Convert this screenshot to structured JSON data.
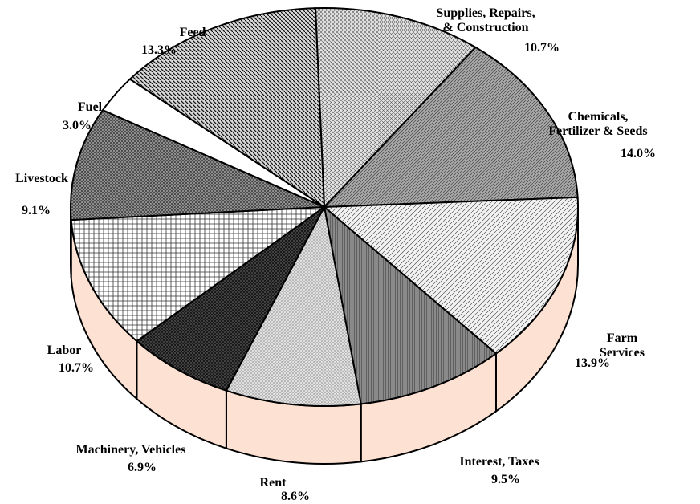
{
  "chart_data": {
    "type": "pie3d",
    "categories": [
      "Supplies, Repairs,\n& Construction",
      "Chemicals,\nFertilizer & Seeds",
      "Farm Services",
      "Interest, Taxes",
      "Rent",
      "Machinery, Vehicles",
      "Labor",
      "Livestock",
      "Fuel",
      "Feed"
    ],
    "values": [
      10.7,
      14.0,
      13.9,
      9.5,
      8.6,
      6.9,
      10.7,
      9.1,
      3.0,
      13.3
    ],
    "value_labels": [
      "10.7%",
      "14.0%",
      "13.9%",
      "9.5%",
      "8.6%",
      "6.9%",
      "10.7%",
      "9.1%",
      "3.0%",
      "13.3%"
    ],
    "colors": [
      "#e6e6e6",
      "#a8a8a8",
      "#f2f2f2",
      "#8a8a8a",
      "#e0e0e0",
      "#4a4a4a",
      "#ffffff",
      "#9a9a9a",
      "#ffffff",
      "#d8d8d8"
    ],
    "side_color": "#fde2d4"
  }
}
